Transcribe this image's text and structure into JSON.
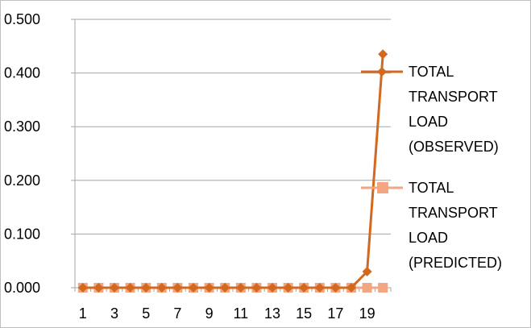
{
  "chart_data": {
    "type": "line",
    "x": [
      1,
      2,
      3,
      4,
      5,
      6,
      7,
      8,
      9,
      10,
      11,
      12,
      13,
      14,
      15,
      16,
      17,
      18,
      19,
      20
    ],
    "x_tick_labels": [
      "1",
      "3",
      "5",
      "7",
      "9",
      "11",
      "13",
      "15",
      "17",
      "19"
    ],
    "ylim": [
      0,
      0.5
    ],
    "y_ticks": [
      "0.000",
      "0.100",
      "0.200",
      "0.300",
      "0.400",
      "0.500"
    ],
    "grid": true,
    "legend_position": "right",
    "series": [
      {
        "name_lines": [
          "TOTAL",
          "TRANSPORT",
          "LOAD",
          "(OBSERVED)"
        ],
        "color": "#d2691e",
        "marker": "diamond",
        "values": [
          0,
          0,
          0,
          0,
          0,
          0,
          0,
          0,
          0,
          0,
          0,
          0,
          0,
          0,
          0,
          0,
          0,
          0,
          0.03,
          0.435
        ]
      },
      {
        "name_lines": [
          "TOTAL",
          "TRANSPORT",
          "LOAD",
          "(PREDICTED)"
        ],
        "color": "#f4a582",
        "marker": "square",
        "values": [
          0,
          0,
          0,
          0,
          0,
          0,
          0,
          0,
          0,
          0,
          0,
          0,
          0,
          0,
          0,
          0,
          0,
          0,
          0,
          0
        ]
      }
    ]
  }
}
